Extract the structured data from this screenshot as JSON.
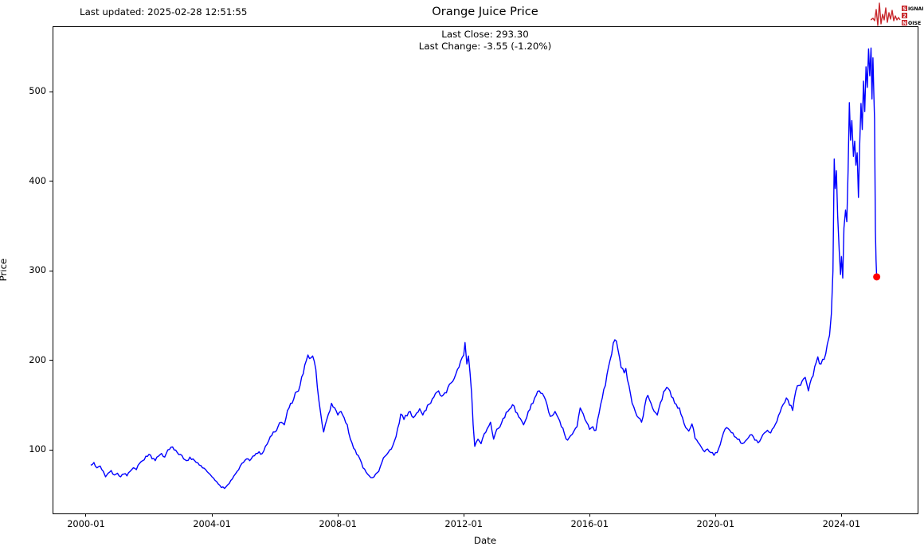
{
  "header": {
    "last_updated": "Last updated: 2025-02-28 12:51:55",
    "logo": {
      "name": "signal-2-noise",
      "color": "#c8282d",
      "line1_boxed": "S",
      "line1_rest": "IGNAL",
      "line2_boxed": "2",
      "line3_boxed": "N",
      "line3_rest": "OISE"
    }
  },
  "chart_data": {
    "type": "line",
    "title": "Orange Juice Price",
    "annotations": [
      "Last Close: 293.30",
      "Last Change: -3.55 (-1.20%)"
    ],
    "xlabel": "Date",
    "ylabel": "Price",
    "grid": false,
    "legend": "none",
    "x_tick_labels": [
      "2000-01",
      "2004-01",
      "2008-01",
      "2012-01",
      "2016-01",
      "2020-01",
      "2024-01"
    ],
    "x_tick_years": [
      2000,
      2004,
      2008,
      2012,
      2016,
      2020,
      2024
    ],
    "y_ticks": [
      100,
      200,
      300,
      400,
      500
    ],
    "xlim_years": [
      1998.95,
      2026.42
    ],
    "ylim": [
      29.5,
      573.3
    ],
    "line_color": "#0000ff",
    "last_point": {
      "year": 2025.12,
      "value": 293.3,
      "marker_color": "#ff0000"
    },
    "last_close": 293.3,
    "last_change": -3.55,
    "last_change_pct": -1.2,
    "series": [
      {
        "name": "Price",
        "points": [
          [
            2000.15,
            83
          ],
          [
            2000.25,
            86
          ],
          [
            2000.35,
            80
          ],
          [
            2000.45,
            82
          ],
          [
            2000.55,
            76
          ],
          [
            2000.62,
            70
          ],
          [
            2000.7,
            74
          ],
          [
            2000.8,
            77
          ],
          [
            2000.9,
            72
          ],
          [
            2001.0,
            74
          ],
          [
            2001.1,
            70
          ],
          [
            2001.2,
            73
          ],
          [
            2001.3,
            71
          ],
          [
            2001.4,
            76
          ],
          [
            2001.5,
            80
          ],
          [
            2001.6,
            78
          ],
          [
            2001.7,
            85
          ],
          [
            2001.8,
            88
          ],
          [
            2001.9,
            93
          ],
          [
            2002.0,
            95
          ],
          [
            2002.1,
            90
          ],
          [
            2002.2,
            88
          ],
          [
            2002.3,
            93
          ],
          [
            2002.4,
            96
          ],
          [
            2002.5,
            92
          ],
          [
            2002.6,
            100
          ],
          [
            2002.7,
            103
          ],
          [
            2002.8,
            100
          ],
          [
            2002.9,
            97
          ],
          [
            2003.0,
            95
          ],
          [
            2003.1,
            90
          ],
          [
            2003.2,
            88
          ],
          [
            2003.3,
            92
          ],
          [
            2003.4,
            90
          ],
          [
            2003.5,
            86
          ],
          [
            2003.6,
            83
          ],
          [
            2003.7,
            80
          ],
          [
            2003.8,
            78
          ],
          [
            2003.9,
            74
          ],
          [
            2004.0,
            70
          ],
          [
            2004.1,
            66
          ],
          [
            2004.2,
            62
          ],
          [
            2004.3,
            58
          ],
          [
            2004.4,
            57
          ],
          [
            2004.5,
            61
          ],
          [
            2004.6,
            66
          ],
          [
            2004.7,
            71
          ],
          [
            2004.8,
            76
          ],
          [
            2004.9,
            82
          ],
          [
            2005.0,
            86
          ],
          [
            2005.1,
            90
          ],
          [
            2005.2,
            88
          ],
          [
            2005.3,
            93
          ],
          [
            2005.4,
            96
          ],
          [
            2005.5,
            98
          ],
          [
            2005.6,
            96
          ],
          [
            2005.7,
            104
          ],
          [
            2005.8,
            110
          ],
          [
            2005.9,
            116
          ],
          [
            2006.0,
            120
          ],
          [
            2006.1,
            126
          ],
          [
            2006.2,
            131
          ],
          [
            2006.3,
            128
          ],
          [
            2006.4,
            144
          ],
          [
            2006.5,
            152
          ],
          [
            2006.6,
            157
          ],
          [
            2006.7,
            165
          ],
          [
            2006.8,
            172
          ],
          [
            2006.9,
            185
          ],
          [
            2007.0,
            200
          ],
          [
            2007.05,
            206
          ],
          [
            2007.1,
            202
          ],
          [
            2007.2,
            205
          ],
          [
            2007.3,
            190
          ],
          [
            2007.35,
            170
          ],
          [
            2007.45,
            142
          ],
          [
            2007.55,
            120
          ],
          [
            2007.6,
            128
          ],
          [
            2007.7,
            140
          ],
          [
            2007.8,
            152
          ],
          [
            2007.9,
            147
          ],
          [
            2008.0,
            139
          ],
          [
            2008.1,
            143
          ],
          [
            2008.2,
            136
          ],
          [
            2008.3,
            128
          ],
          [
            2008.4,
            112
          ],
          [
            2008.5,
            102
          ],
          [
            2008.6,
            95
          ],
          [
            2008.7,
            90
          ],
          [
            2008.8,
            80
          ],
          [
            2008.9,
            75
          ],
          [
            2009.0,
            71
          ],
          [
            2009.1,
            69
          ],
          [
            2009.2,
            73
          ],
          [
            2009.3,
            76
          ],
          [
            2009.4,
            86
          ],
          [
            2009.5,
            93
          ],
          [
            2009.6,
            97
          ],
          [
            2009.7,
            101
          ],
          [
            2009.8,
            110
          ],
          [
            2009.9,
            124
          ],
          [
            2010.0,
            140
          ],
          [
            2010.1,
            134
          ],
          [
            2010.2,
            138
          ],
          [
            2010.3,
            143
          ],
          [
            2010.4,
            136
          ],
          [
            2010.5,
            141
          ],
          [
            2010.6,
            146
          ],
          [
            2010.7,
            139
          ],
          [
            2010.8,
            144
          ],
          [
            2010.9,
            151
          ],
          [
            2011.0,
            157
          ],
          [
            2011.1,
            163
          ],
          [
            2011.2,
            166
          ],
          [
            2011.3,
            160
          ],
          [
            2011.4,
            164
          ],
          [
            2011.5,
            170
          ],
          [
            2011.6,
            175
          ],
          [
            2011.7,
            180
          ],
          [
            2011.8,
            190
          ],
          [
            2011.9,
            199
          ],
          [
            2012.0,
            206
          ],
          [
            2012.04,
            220
          ],
          [
            2012.1,
            196
          ],
          [
            2012.15,
            205
          ],
          [
            2012.2,
            186
          ],
          [
            2012.25,
            163
          ],
          [
            2012.3,
            128
          ],
          [
            2012.35,
            104
          ],
          [
            2012.45,
            112
          ],
          [
            2012.55,
            107
          ],
          [
            2012.65,
            118
          ],
          [
            2012.75,
            124
          ],
          [
            2012.85,
            131
          ],
          [
            2012.95,
            112
          ],
          [
            2013.0,
            118
          ],
          [
            2013.1,
            124
          ],
          [
            2013.2,
            130
          ],
          [
            2013.3,
            136
          ],
          [
            2013.4,
            143
          ],
          [
            2013.5,
            147
          ],
          [
            2013.6,
            149
          ],
          [
            2013.7,
            141
          ],
          [
            2013.8,
            135
          ],
          [
            2013.9,
            128
          ],
          [
            2014.0,
            136
          ],
          [
            2014.1,
            145
          ],
          [
            2014.2,
            152
          ],
          [
            2014.3,
            161
          ],
          [
            2014.4,
            166
          ],
          [
            2014.5,
            163
          ],
          [
            2014.6,
            156
          ],
          [
            2014.7,
            142
          ],
          [
            2014.8,
            138
          ],
          [
            2014.9,
            143
          ],
          [
            2015.0,
            136
          ],
          [
            2015.1,
            126
          ],
          [
            2015.2,
            118
          ],
          [
            2015.3,
            111
          ],
          [
            2015.4,
            116
          ],
          [
            2015.5,
            121
          ],
          [
            2015.6,
            126
          ],
          [
            2015.7,
            147
          ],
          [
            2015.8,
            140
          ],
          [
            2015.9,
            131
          ],
          [
            2016.0,
            123
          ],
          [
            2016.1,
            126
          ],
          [
            2016.2,
            122
          ],
          [
            2016.3,
            141
          ],
          [
            2016.4,
            158
          ],
          [
            2016.5,
            172
          ],
          [
            2016.6,
            193
          ],
          [
            2016.7,
            207
          ],
          [
            2016.8,
            223
          ],
          [
            2016.9,
            212
          ],
          [
            2017.0,
            192
          ],
          [
            2017.1,
            186
          ],
          [
            2017.15,
            191
          ],
          [
            2017.25,
            172
          ],
          [
            2017.35,
            152
          ],
          [
            2017.45,
            143
          ],
          [
            2017.55,
            136
          ],
          [
            2017.65,
            131
          ],
          [
            2017.75,
            149
          ],
          [
            2017.85,
            161
          ],
          [
            2017.95,
            152
          ],
          [
            2018.05,
            143
          ],
          [
            2018.15,
            139
          ],
          [
            2018.25,
            153
          ],
          [
            2018.35,
            165
          ],
          [
            2018.45,
            170
          ],
          [
            2018.55,
            166
          ],
          [
            2018.65,
            158
          ],
          [
            2018.75,
            151
          ],
          [
            2018.85,
            147
          ],
          [
            2018.95,
            136
          ],
          [
            2019.05,
            125
          ],
          [
            2019.15,
            121
          ],
          [
            2019.25,
            129
          ],
          [
            2019.35,
            113
          ],
          [
            2019.45,
            108
          ],
          [
            2019.55,
            103
          ],
          [
            2019.65,
            98
          ],
          [
            2019.75,
            101
          ],
          [
            2019.85,
            97
          ],
          [
            2019.95,
            94
          ],
          [
            2020.05,
            97
          ],
          [
            2020.15,
            106
          ],
          [
            2020.25,
            119
          ],
          [
            2020.35,
            125
          ],
          [
            2020.45,
            122
          ],
          [
            2020.55,
            119
          ],
          [
            2020.65,
            114
          ],
          [
            2020.75,
            112
          ],
          [
            2020.85,
            107
          ],
          [
            2020.95,
            110
          ],
          [
            2021.05,
            114
          ],
          [
            2021.15,
            117
          ],
          [
            2021.25,
            111
          ],
          [
            2021.35,
            108
          ],
          [
            2021.45,
            113
          ],
          [
            2021.55,
            119
          ],
          [
            2021.65,
            122
          ],
          [
            2021.75,
            119
          ],
          [
            2021.85,
            125
          ],
          [
            2021.95,
            132
          ],
          [
            2022.05,
            142
          ],
          [
            2022.15,
            151
          ],
          [
            2022.25,
            158
          ],
          [
            2022.35,
            150
          ],
          [
            2022.45,
            144
          ],
          [
            2022.55,
            166
          ],
          [
            2022.65,
            172
          ],
          [
            2022.75,
            177
          ],
          [
            2022.85,
            181
          ],
          [
            2022.95,
            166
          ],
          [
            2023.05,
            180
          ],
          [
            2023.15,
            193
          ],
          [
            2023.25,
            204
          ],
          [
            2023.35,
            196
          ],
          [
            2023.45,
            201
          ],
          [
            2023.55,
            218
          ],
          [
            2023.62,
            228
          ],
          [
            2023.68,
            252
          ],
          [
            2023.73,
            300
          ],
          [
            2023.77,
            425
          ],
          [
            2023.8,
            392
          ],
          [
            2023.84,
            412
          ],
          [
            2023.88,
            362
          ],
          [
            2023.93,
            322
          ],
          [
            2023.97,
            296
          ],
          [
            2024.0,
            316
          ],
          [
            2024.04,
            292
          ],
          [
            2024.08,
            348
          ],
          [
            2024.13,
            368
          ],
          [
            2024.17,
            355
          ],
          [
            2024.21,
            412
          ],
          [
            2024.25,
            488
          ],
          [
            2024.29,
            446
          ],
          [
            2024.33,
            468
          ],
          [
            2024.38,
            428
          ],
          [
            2024.42,
            445
          ],
          [
            2024.46,
            418
          ],
          [
            2024.5,
            432
          ],
          [
            2024.54,
            382
          ],
          [
            2024.58,
            442
          ],
          [
            2024.62,
            487
          ],
          [
            2024.66,
            458
          ],
          [
            2024.7,
            512
          ],
          [
            2024.74,
            478
          ],
          [
            2024.78,
            528
          ],
          [
            2024.82,
            505
          ],
          [
            2024.86,
            548
          ],
          [
            2024.9,
            518
          ],
          [
            2024.94,
            549
          ],
          [
            2024.97,
            492
          ],
          [
            2025.0,
            538
          ],
          [
            2025.03,
            495
          ],
          [
            2025.05,
            470
          ],
          [
            2025.08,
            345
          ],
          [
            2025.1,
            312
          ],
          [
            2025.12,
            293.3
          ]
        ]
      }
    ]
  }
}
